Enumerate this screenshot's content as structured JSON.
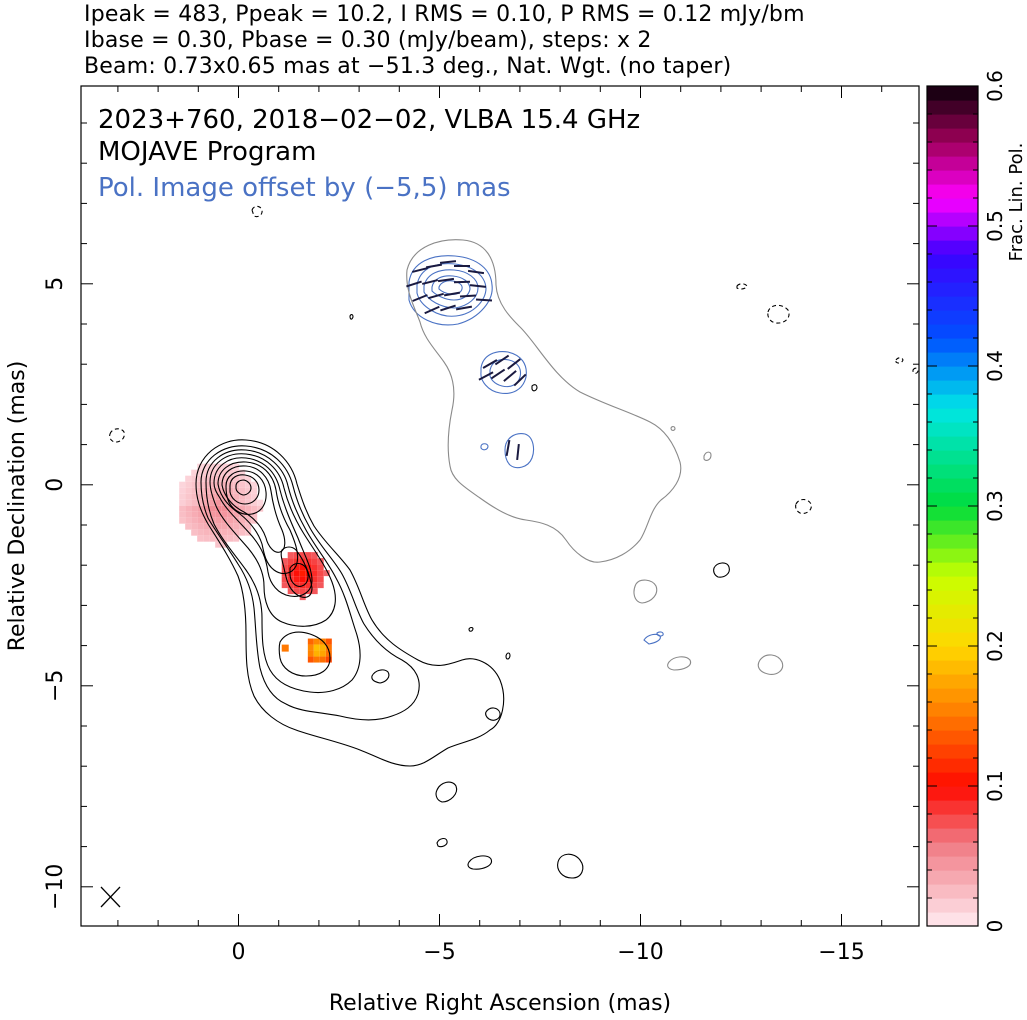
{
  "header": {
    "line1": "Ipeak = 483, Ppeak = 10.2, I RMS = 0.10, P RMS = 0.12 mJy/bm",
    "line2": "Ibase = 0.30, Pbase = 0.30 (mJy/beam), steps: x 2",
    "line3": "Beam: 0.73x0.65 mas at −51.3 deg., Nat. Wgt. (no taper)"
  },
  "chart_data": {
    "type": "heatmap",
    "title": "2023+760, 2018−02−02, VLBA 15.4 GHz",
    "subtitle": "MOJAVE Program",
    "annotation": "Pol. Image offset by (−5,5) mas",
    "xlabel": "Relative Right Ascension (mas)",
    "ylabel": "Relative Declination (mas)",
    "xlim": [
      4,
      -17
    ],
    "ylim": [
      -11,
      10
    ],
    "x_ticks": [
      0,
      -5,
      -10,
      -15
    ],
    "x_tick_labels": [
      "0",
      "−5",
      "−10",
      "−15"
    ],
    "y_ticks": [
      5,
      0,
      -5,
      -10
    ],
    "y_tick_labels": [
      "5",
      "0",
      "−5",
      "−10"
    ],
    "colorbar": {
      "label": "Frac. Lin. Pol.",
      "range": [
        0,
        0.6
      ],
      "ticks": [
        0,
        0.1,
        0.2,
        0.3,
        0.4,
        0.5,
        0.6
      ],
      "tick_labels": [
        "0",
        "0.1",
        "0.2",
        "0.3",
        "0.4",
        "0.5",
        "0.6"
      ]
    },
    "intensity_peak_mjy_per_beam": 483,
    "polarization_peak_mjy_per_beam": 10.2,
    "pol_offset_mas": [
      -5,
      5
    ],
    "beam": {
      "major_mas": 0.73,
      "minor_mas": 0.65,
      "pa_deg": -51.3
    },
    "frac_pol_blobs": [
      {
        "ra": 0.5,
        "dec": -0.45,
        "frac_pol": 0.02
      },
      {
        "ra": -1.6,
        "dec": -2.2,
        "frac_pol": 0.09
      },
      {
        "ra": -2.0,
        "dec": -4.1,
        "frac_pol": 0.17
      }
    ]
  },
  "colors": {
    "stokes_i_contours": "#000000",
    "pol_contours": "#4a72c4",
    "pol_outer_contour": "#8a8a8a",
    "annotation_text": "#4a72c4"
  }
}
